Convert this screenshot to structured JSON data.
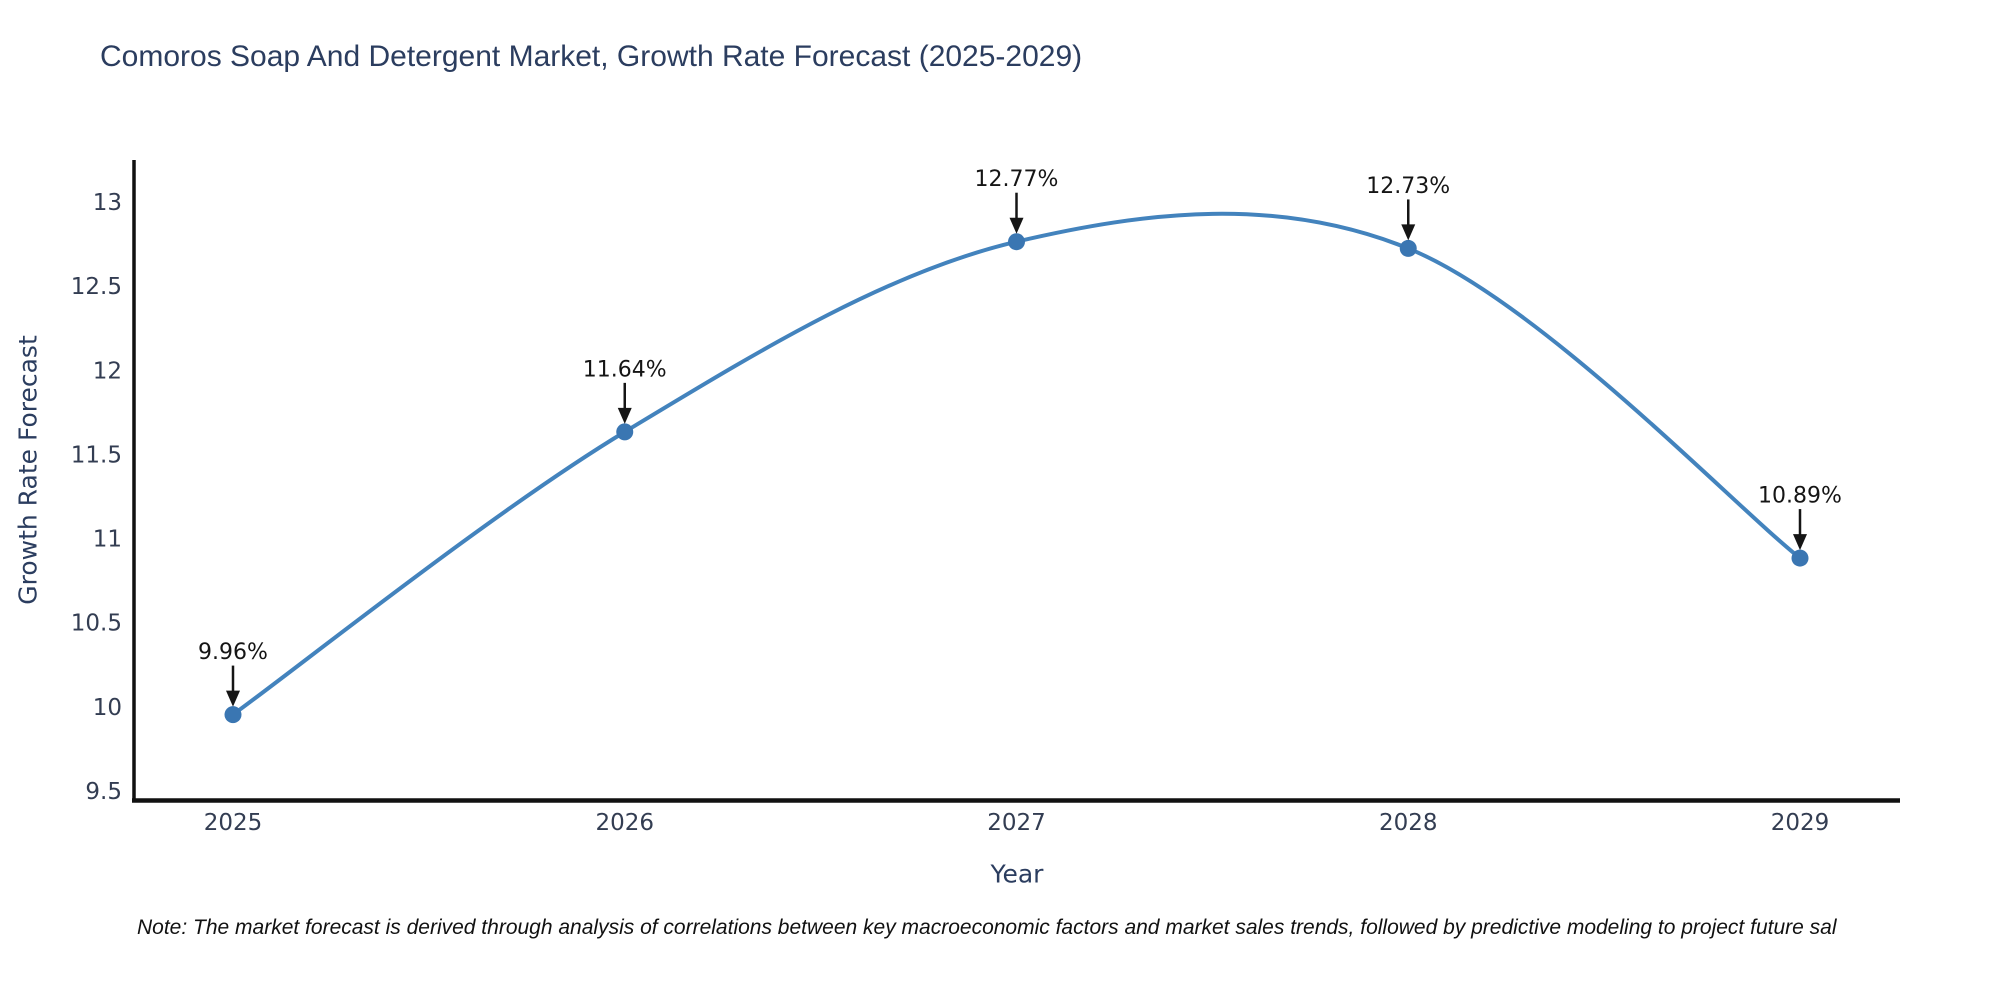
{
  "title": "Comoros Soap And Detergent Market, Growth Rate Forecast (2025-2029)",
  "footnote": "Note: The market forecast is derived through analysis of correlations between key macroeconomic factors and market sales trends, followed by predictive modeling to project future sal",
  "chart_data": {
    "type": "line",
    "line_shape": "spline",
    "title": "Comoros Soap And Detergent Market, Growth Rate Forecast (2025-2029)",
    "xlabel": "Year",
    "ylabel": "Growth Rate Forecast",
    "x": [
      2025,
      2026,
      2027,
      2028,
      2029
    ],
    "values": [
      9.96,
      11.64,
      12.77,
      12.73,
      10.89
    ],
    "point_labels": [
      "9.96%",
      "11.64%",
      "12.77%",
      "12.73%",
      "10.89%"
    ],
    "xtick_labels": [
      "2025",
      "2026",
      "2027",
      "2028",
      "2029"
    ],
    "ytick_values": [
      9.5,
      10,
      10.5,
      11,
      11.5,
      12,
      12.5,
      13
    ],
    "ytick_labels": [
      "9.5",
      "10",
      "10.5",
      "11",
      "11.5",
      "12",
      "12.5",
      "13"
    ],
    "ylim": [
      9.5,
      13
    ],
    "grid": false,
    "legend": "none",
    "colors": {
      "line": "#4383bd",
      "marker": "#3a76b2",
      "axis": "#111111",
      "tick_text": "#333d52",
      "axis_title_text": "#2b3d5f",
      "annotation_text": "#151515",
      "annotation_arrow": "#151515",
      "background": "#ffffff"
    }
  }
}
